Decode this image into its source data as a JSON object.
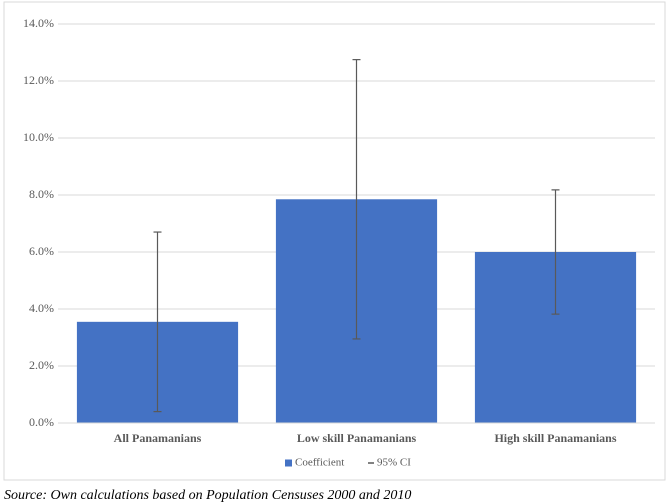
{
  "chart_data": {
    "type": "bar",
    "categories": [
      "All Panamanians",
      "Low skill Panamanians",
      "High skill Panamanians"
    ],
    "series": [
      {
        "name": "Coefficient",
        "color": "#4472c4",
        "values": [
          3.55,
          7.85,
          6.0
        ],
        "errors": [
          3.15,
          4.9,
          2.18
        ]
      }
    ],
    "error_name": "95% CI",
    "ylim": [
      0,
      14
    ],
    "yticks": [
      {
        "value": 0,
        "label": "0.0%"
      },
      {
        "value": 2,
        "label": "2.0%"
      },
      {
        "value": 4,
        "label": "4.0%"
      },
      {
        "value": 6,
        "label": "6.0%"
      },
      {
        "value": 8,
        "label": "8.0%"
      },
      {
        "value": 10,
        "label": "10.0%"
      },
      {
        "value": 12,
        "label": "12.0%"
      },
      {
        "value": 14,
        "label": "14.0%"
      }
    ],
    "grid": true,
    "legend": "bottom",
    "source": "Source: Own calculations based on Population Censuses 2000 and 2010"
  }
}
